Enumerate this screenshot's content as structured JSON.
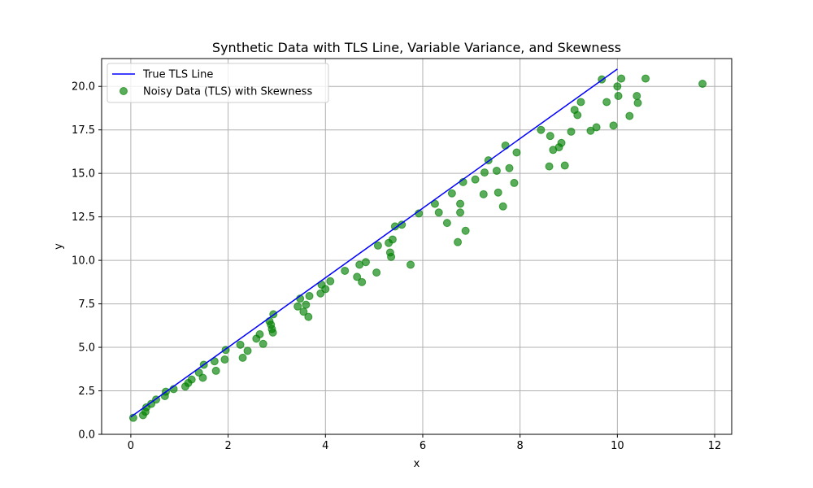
{
  "chart_data": {
    "type": "scatter",
    "title": "Synthetic Data with TLS Line, Variable Variance, and Skewness",
    "xlabel": "x",
    "ylabel": "y",
    "xlim": [
      -0.6,
      12.35
    ],
    "ylim": [
      0.0,
      21.6
    ],
    "xticks": [
      0,
      2,
      4,
      6,
      8,
      10,
      12
    ],
    "xtick_labels": [
      "0",
      "2",
      "4",
      "6",
      "8",
      "10",
      "12"
    ],
    "yticks": [
      0.0,
      2.5,
      5.0,
      7.5,
      10.0,
      12.5,
      15.0,
      17.5,
      20.0
    ],
    "ytick_labels": [
      "0.0",
      "2.5",
      "5.0",
      "7.5",
      "10.0",
      "12.5",
      "15.0",
      "17.5",
      "20.0"
    ],
    "grid": true,
    "legend_position": "top-left",
    "series": [
      {
        "name": "True TLS Line",
        "kind": "line",
        "color": "#0000ff",
        "x": [
          0,
          10
        ],
        "y": [
          1.0,
          21.0
        ]
      },
      {
        "name": "Noisy Data (TLS) with Skewness",
        "kind": "scatter",
        "color": "#008000",
        "alpha": 0.65,
        "x": [
          0.05,
          0.25,
          0.3,
          0.32,
          0.42,
          0.52,
          0.7,
          0.72,
          0.88,
          1.12,
          1.18,
          1.25,
          1.4,
          1.48,
          1.5,
          1.72,
          1.75,
          1.93,
          1.95,
          2.25,
          2.3,
          2.4,
          2.58,
          2.65,
          2.72,
          2.85,
          2.88,
          2.9,
          2.92,
          2.93,
          3.43,
          3.48,
          3.55,
          3.6,
          3.65,
          3.67,
          3.9,
          3.92,
          4.0,
          4.1,
          4.4,
          4.65,
          4.7,
          4.75,
          4.83,
          5.05,
          5.08,
          5.3,
          5.33,
          5.35,
          5.38,
          5.43,
          5.57,
          5.75,
          5.92,
          6.25,
          6.33,
          6.5,
          6.6,
          6.72,
          6.77,
          6.77,
          6.83,
          6.88,
          7.08,
          7.25,
          7.27,
          7.35,
          7.52,
          7.55,
          7.65,
          7.7,
          7.78,
          7.88,
          7.93,
          8.43,
          8.6,
          8.62,
          8.68,
          8.8,
          8.85,
          8.92,
          9.05,
          9.12,
          9.18,
          9.25,
          9.45,
          9.57,
          9.68,
          9.78,
          9.92,
          10.0,
          10.02,
          10.08,
          10.25,
          10.4,
          10.42,
          10.58,
          11.75
        ],
        "y": [
          0.95,
          1.1,
          1.3,
          1.55,
          1.75,
          2.0,
          2.2,
          2.45,
          2.6,
          2.75,
          2.95,
          3.15,
          3.55,
          3.25,
          4.0,
          4.2,
          3.65,
          4.3,
          4.85,
          5.15,
          4.4,
          4.8,
          5.5,
          5.75,
          5.2,
          6.5,
          6.3,
          6.05,
          5.85,
          6.9,
          7.35,
          7.8,
          7.05,
          7.45,
          6.75,
          7.95,
          8.1,
          8.6,
          8.35,
          8.8,
          9.4,
          9.05,
          9.75,
          8.75,
          9.9,
          9.3,
          10.85,
          11.0,
          10.45,
          10.2,
          11.2,
          11.95,
          12.05,
          9.75,
          12.7,
          13.25,
          12.75,
          12.15,
          13.85,
          11.05,
          13.25,
          12.75,
          14.5,
          11.7,
          14.65,
          13.8,
          15.05,
          15.75,
          15.15,
          13.9,
          13.1,
          16.6,
          15.3,
          14.45,
          16.2,
          17.5,
          15.4,
          17.15,
          16.35,
          16.5,
          16.75,
          15.45,
          17.4,
          18.65,
          18.35,
          19.1,
          17.45,
          17.65,
          20.4,
          19.1,
          17.75,
          20.0,
          19.45,
          20.45,
          18.3,
          19.45,
          19.05,
          20.45,
          20.15
        ]
      }
    ]
  }
}
